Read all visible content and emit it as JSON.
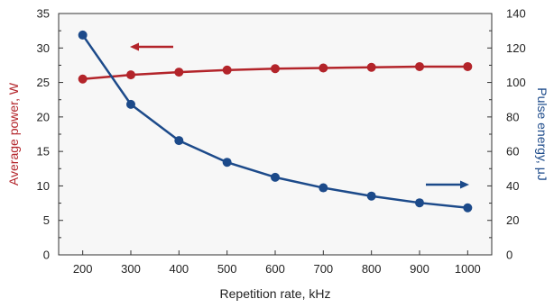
{
  "chart_data": {
    "type": "line",
    "xlabel": "Repetition rate, kHz",
    "ylabel_left": "Average power, W",
    "ylabel_right": "Pulse energy, μJ",
    "x": [
      200,
      300,
      400,
      500,
      600,
      700,
      800,
      900,
      1000
    ],
    "xlim": [
      150,
      1050
    ],
    "x_ticks": [
      "200",
      "300",
      "400",
      "500",
      "600",
      "700",
      "800",
      "900",
      "1000"
    ],
    "y_left_lim": [
      0,
      35
    ],
    "y_left_ticks": [
      "0",
      "5",
      "10",
      "15",
      "20",
      "25",
      "30",
      "35"
    ],
    "y_right_lim": [
      0,
      140
    ],
    "y_right_ticks": [
      "0",
      "20",
      "40",
      "60",
      "80",
      "100",
      "120",
      "140"
    ],
    "grid": false,
    "series": [
      {
        "axis": "left",
        "color": "#b3242a",
        "values": [
          25.5,
          26.1,
          26.5,
          26.8,
          27.0,
          27.1,
          27.2,
          27.3,
          27.3
        ],
        "arrow": "left"
      },
      {
        "axis": "right",
        "color": "#1c4a8a",
        "values": [
          127.5,
          87.3,
          66.3,
          53.7,
          45.0,
          38.9,
          34.1,
          30.2,
          27.3
        ],
        "arrow": "right"
      }
    ]
  }
}
